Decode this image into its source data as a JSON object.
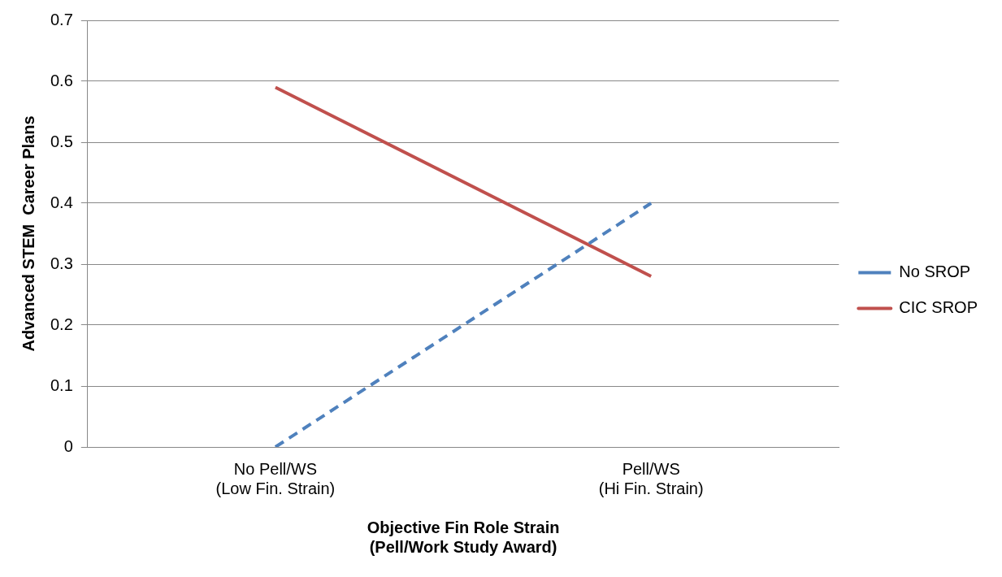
{
  "chart_data": {
    "type": "line",
    "categories": [
      "No Pell/WS\n(Low Fin. Strain)",
      "Pell/WS\n(Hi Fin. Strain)"
    ],
    "series": [
      {
        "name": "No SROP",
        "color": "#4f81bd",
        "values": [
          0,
          0.4
        ],
        "line_style": "dashed"
      },
      {
        "name": "CIC SROP",
        "color": "#c0504d",
        "values": [
          0.59,
          0.28
        ],
        "line_style": "solid"
      }
    ],
    "xlabel": "Objective Fin Role Strain\n(Pell/Work Study Award)",
    "ylabel": "Advanced STEM  Career Plans",
    "ylim": [
      0,
      0.7
    ],
    "yticks": [
      0,
      0.1,
      0.2,
      0.3,
      0.4,
      0.5,
      0.6,
      0.7
    ],
    "grid": "y",
    "legend": "right",
    "marker": "none"
  }
}
